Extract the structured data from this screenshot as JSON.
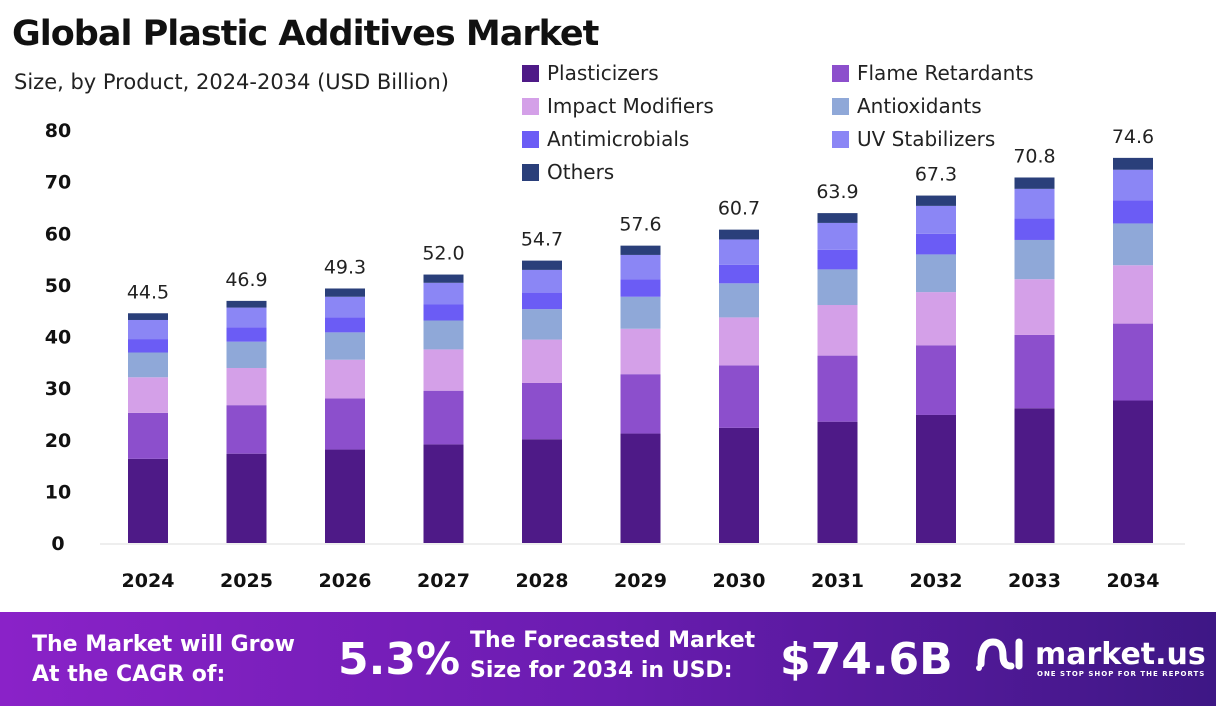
{
  "chart_data": {
    "type": "bar",
    "stacked": true,
    "title": "Global Plastic Additives Market",
    "subtitle": "Size, by Product, 2024-2034 (USD Billion)",
    "categories": [
      "2024",
      "2025",
      "2026",
      "2027",
      "2028",
      "2029",
      "2030",
      "2031",
      "2032",
      "2033",
      "2034"
    ],
    "totals": [
      "44.5",
      "46.9",
      "49.3",
      "52.0",
      "54.7",
      "57.6",
      "60.7",
      "63.9",
      "67.3",
      "70.8",
      "74.6"
    ],
    "ylim": [
      0,
      80
    ],
    "yticks": [
      "0",
      "10",
      "20",
      "30",
      "40",
      "50",
      "60",
      "70",
      "80"
    ],
    "grid": false,
    "legend_position": "top-right",
    "series": [
      {
        "name": "Plasticizers",
        "color": "#4e1a87",
        "values": [
          16.3,
          17.3,
          18.1,
          19.1,
          20.1,
          21.2,
          22.3,
          23.5,
          24.8,
          26.1,
          27.6
        ]
      },
      {
        "name": "Flame Retardants",
        "color": "#8c4fcc",
        "values": [
          8.9,
          9.4,
          9.9,
          10.4,
          10.9,
          11.5,
          12.1,
          12.8,
          13.5,
          14.2,
          14.9
        ]
      },
      {
        "name": "Impact Modifiers",
        "color": "#d4a0e8",
        "values": [
          6.9,
          7.2,
          7.5,
          8.0,
          8.4,
          8.8,
          9.3,
          9.8,
          10.3,
          10.8,
          11.3
        ]
      },
      {
        "name": "Antioxidants",
        "color": "#8fa8d8",
        "values": [
          4.8,
          5.1,
          5.3,
          5.6,
          5.9,
          6.2,
          6.6,
          6.9,
          7.3,
          7.6,
          8.1
        ]
      },
      {
        "name": "Antimicrobials",
        "color": "#6b5cf5",
        "values": [
          2.6,
          2.8,
          2.9,
          3.1,
          3.2,
          3.4,
          3.6,
          3.8,
          4.0,
          4.2,
          4.5
        ]
      },
      {
        "name": "UV Stabilizers",
        "color": "#8b86f5",
        "values": [
          3.7,
          3.8,
          4.0,
          4.2,
          4.4,
          4.7,
          4.9,
          5.2,
          5.4,
          5.7,
          5.9
        ]
      },
      {
        "name": "Others",
        "color": "#2a3f7a",
        "values": [
          1.3,
          1.3,
          1.6,
          1.6,
          1.8,
          1.8,
          1.9,
          1.9,
          2.0,
          2.2,
          2.3
        ]
      }
    ]
  },
  "footer": {
    "cagr_label_1": "The Market will Grow",
    "cagr_label_2": "At the CAGR of:",
    "cagr_value": "5.3%",
    "forecast_label_1": "The Forecasted Market",
    "forecast_label_2": "Size for 2034 in USD:",
    "forecast_value": "$74.6B",
    "logo_name": "market.us",
    "logo_tagline": "ONE STOP SHOP FOR THE REPORTS"
  }
}
